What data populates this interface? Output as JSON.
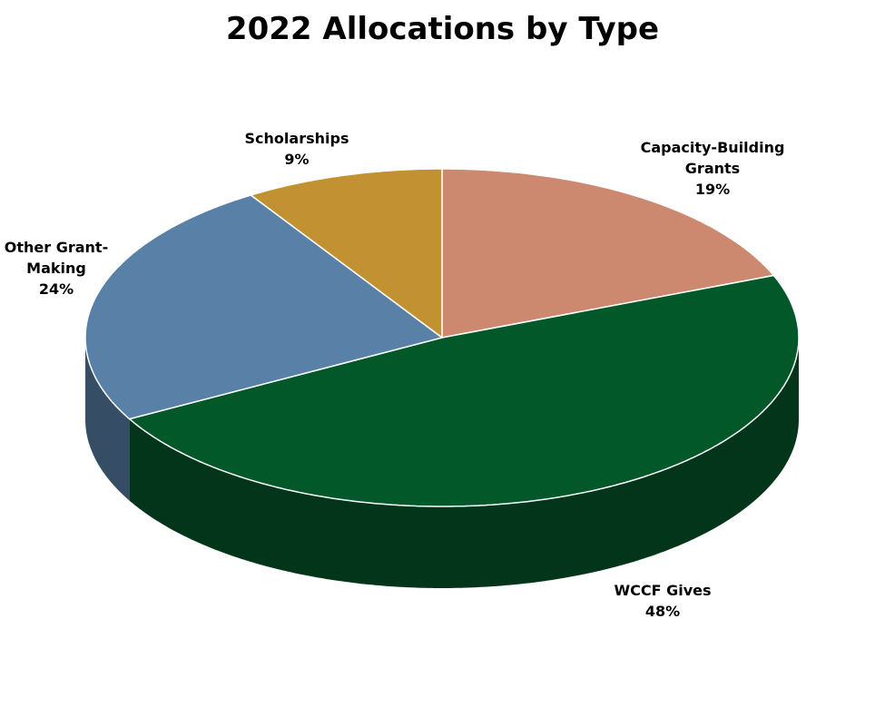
{
  "chart_data": {
    "type": "pie",
    "title": "2022 Allocations by Type",
    "categories": [
      "Capacity-Building Grants",
      "WCCF Gives",
      "Other Grant-Making",
      "Scholarships"
    ],
    "values": [
      19,
      48,
      24,
      9
    ],
    "value_labels": [
      "19%",
      "48%",
      "24%",
      "9%"
    ],
    "colors": [
      "#cd8870",
      "#03582a",
      "#5981a8",
      "#c29232"
    ]
  }
}
